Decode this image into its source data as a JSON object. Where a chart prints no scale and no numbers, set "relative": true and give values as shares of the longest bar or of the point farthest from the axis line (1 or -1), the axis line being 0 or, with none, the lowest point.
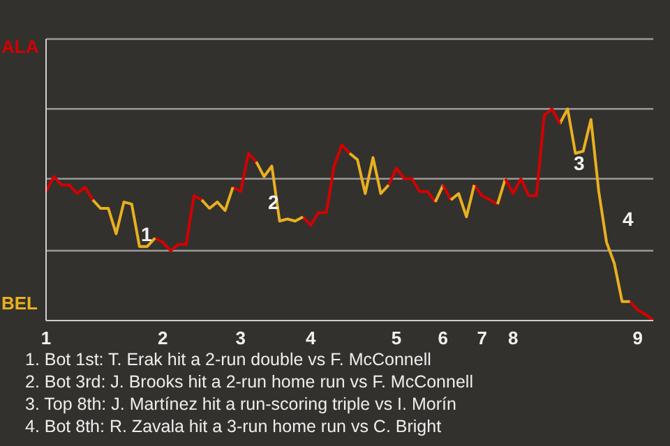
{
  "chart_data": {
    "type": "line",
    "relative": true,
    "categories": [
      "1",
      null,
      null,
      null,
      null,
      null,
      null,
      null,
      null,
      null,
      null,
      null,
      null,
      null,
      null,
      "2",
      null,
      null,
      null,
      null,
      null,
      null,
      null,
      null,
      null,
      "3",
      null,
      null,
      null,
      null,
      null,
      null,
      null,
      null,
      "4",
      null,
      null,
      null,
      null,
      null,
      null,
      null,
      null,
      null,
      null,
      "5",
      null,
      null,
      null,
      null,
      null,
      "6",
      null,
      null,
      null,
      null,
      "7",
      null,
      null,
      null,
      "8",
      null,
      null,
      null,
      null,
      null,
      null,
      null,
      null,
      null,
      null,
      null,
      null,
      null,
      null,
      null,
      "9",
      null,
      null
    ],
    "ref_lines": [
      {
        "axis": "y",
        "value": 0.33,
        "color": "#9a9a9a"
      },
      {
        "axis": "y",
        "value": 0.67,
        "color": "#9a9a9a"
      },
      {
        "axis": "y",
        "value": 1,
        "color": "#9a9a9a"
      },
      {
        "axis": "y",
        "value": 1.33,
        "color": "#9a9a9a"
      }
    ],
    "marker": "none",
    "series": [
      {
        "name": "ALA",
        "color": "#d40000",
        "values": [
          0.61,
          0.68,
          0.64,
          0.64,
          0.6,
          0.63,
          0.57,
          null,
          null,
          null,
          null,
          null,
          null,
          null,
          0.39,
          0.37,
          0.33,
          0.36,
          0.36,
          0.59,
          0.57,
          null,
          null,
          null,
          0.63,
          0.61,
          0.79,
          0.75,
          null,
          null,
          null,
          null,
          null,
          0.49,
          0.45,
          0.51,
          0.51,
          0.73,
          0.83,
          0.79,
          null,
          null,
          null,
          null,
          0.64,
          0.72,
          0.67,
          0.67,
          0.61,
          0.61,
          0.56,
          null,
          null,
          null,
          null,
          0.64,
          0.59,
          0.57,
          0.55,
          null,
          null,
          null,
          null,
          null,
          null,
          null,
          null,
          null,
          null,
          null,
          null,
          null,
          null,
          null,
          null,
          0.09,
          0.05,
          0.03,
          0
        ]
      },
      {
        "name": "BEL",
        "color": "#e8b020",
        "values": [
          null,
          null,
          null,
          null,
          null,
          null,
          0.57,
          0.53,
          0.53,
          0.41,
          0.56,
          0.55,
          0.35,
          0.35,
          0.39,
          null,
          null,
          null,
          null,
          null,
          0.57,
          0.53,
          0.56,
          0.52,
          0.63,
          null,
          null,
          0.75,
          0.68,
          0.73,
          0.47,
          0.48,
          0.47,
          0.49,
          null,
          null,
          null,
          null,
          null,
          0.79,
          0.76,
          0.6,
          0.77,
          0.6,
          0.64,
          null,
          null,
          null,
          null,
          null,
          0.56,
          0.64,
          null,
          null,
          null,
          null,
          null,
          null,
          0.55,
          0.67,
          null,
          null,
          null,
          null,
          null,
          null,
          0.93,
          1,
          0.79,
          0.8,
          0.95,
          0.61,
          0.37,
          0.27,
          0.09,
          0.09,
          null,
          null,
          null
        ]
      },
      {
        "color": "#d40000",
        "values": [
          null,
          null,
          null,
          null,
          null,
          null,
          null,
          null,
          null,
          null,
          null,
          null,
          null,
          null,
          null,
          null,
          null,
          null,
          null,
          null,
          null,
          null,
          null,
          null,
          null,
          null,
          null,
          null,
          null,
          null,
          null,
          null,
          null,
          null,
          null,
          null,
          null,
          null,
          null,
          null,
          null,
          null,
          null,
          null,
          null,
          null,
          null,
          null,
          null,
          null,
          null,
          0.64,
          0.57,
          null,
          null,
          null,
          null,
          null,
          null,
          0.67,
          0.6,
          0.67,
          0.59,
          0.59,
          0.97,
          1,
          0.93,
          null,
          null,
          null,
          null,
          null,
          null,
          null,
          null,
          null,
          null,
          null,
          null
        ]
      },
      {
        "color": "#e8b020",
        "values": [
          null,
          null,
          null,
          null,
          null,
          null,
          null,
          null,
          null,
          null,
          null,
          null,
          null,
          null,
          null,
          null,
          null,
          null,
          null,
          null,
          null,
          null,
          null,
          null,
          null,
          null,
          null,
          null,
          null,
          null,
          null,
          null,
          null,
          null,
          null,
          null,
          null,
          null,
          null,
          null,
          null,
          null,
          null,
          null,
          null,
          null,
          null,
          null,
          null,
          null,
          null,
          null,
          0.57,
          0.6,
          0.49,
          0.64,
          null,
          null,
          null,
          null,
          null,
          null,
          null,
          null,
          null,
          null,
          null,
          null,
          null,
          null,
          null,
          null,
          null,
          null,
          null,
          null,
          null,
          null,
          null
        ]
      }
    ],
    "annotations": [
      "1",
      "2",
      "3",
      "4",
      "1. Bot 1st: T. Erak hit a 2-run double vs F. McConnell",
      "2. Bot 3rd: J. Brooks hit a 2-run home run vs F. McConnell",
      "3. Top 8th: J. Martínez hit a run-scoring triple vs I. Morín",
      "4. Bot 8th: R. Zavala hit a 3-run home run vs C. Bright"
    ]
  }
}
